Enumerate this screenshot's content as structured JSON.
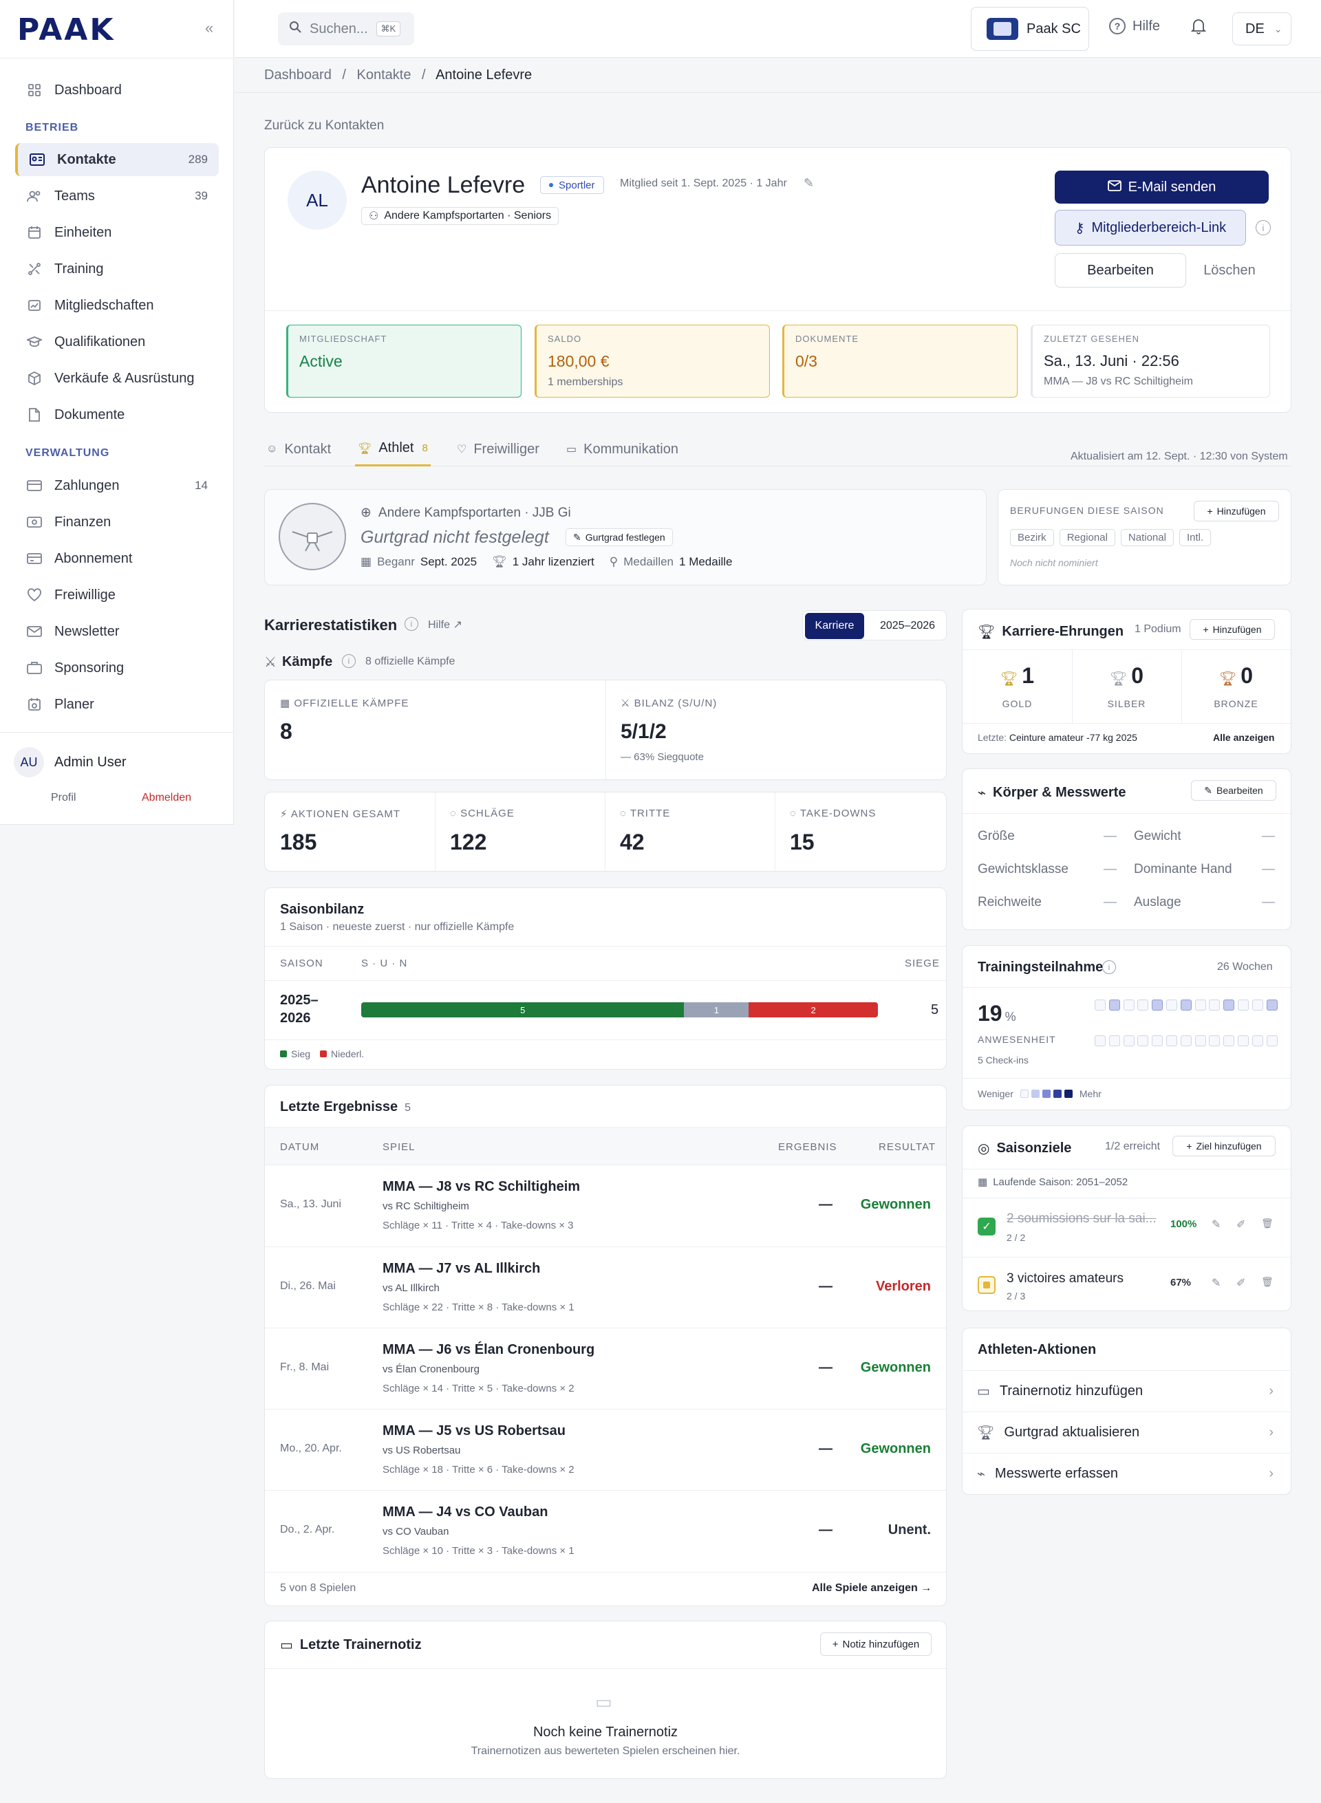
{
  "app": {
    "logo": "PAAK",
    "collapse_icon": "«"
  },
  "sidebar": {
    "items_top": [
      {
        "label": "Dashboard",
        "icon": "grid-icon"
      }
    ],
    "section_betrieb": "BETRIEB",
    "betrieb": [
      {
        "label": "Kontakte",
        "count": "289",
        "icon": "contact-card-icon"
      },
      {
        "label": "Teams",
        "count": "39",
        "icon": "users-icon"
      },
      {
        "label": "Einheiten",
        "count": "",
        "icon": "calendar-icon"
      },
      {
        "label": "Training",
        "count": "",
        "icon": "training-icon"
      },
      {
        "label": "Mitgliedschaften",
        "count": "",
        "icon": "membership-icon"
      },
      {
        "label": "Qualifikationen",
        "count": "",
        "icon": "graduation-icon"
      },
      {
        "label": "Verkäufe & Ausrüstung",
        "count": "",
        "icon": "box-icon"
      },
      {
        "label": "Dokumente",
        "count": "",
        "icon": "document-icon"
      }
    ],
    "section_verwaltung": "VERWALTUNG",
    "verwaltung": [
      {
        "label": "Zahlungen",
        "count": "14",
        "icon": "credit-card-icon"
      },
      {
        "label": "Finanzen",
        "count": "",
        "icon": "finance-icon"
      },
      {
        "label": "Abonnement",
        "count": "",
        "icon": "subscription-icon"
      },
      {
        "label": "Freiwillige",
        "count": "",
        "icon": "heart-icon"
      },
      {
        "label": "Newsletter",
        "count": "",
        "icon": "mail-icon"
      },
      {
        "label": "Sponsoring",
        "count": "",
        "icon": "briefcase-icon"
      },
      {
        "label": "Planer",
        "count": "",
        "icon": "planner-icon"
      }
    ],
    "user": {
      "initials": "AU",
      "name": "Admin User",
      "profile": "Profil",
      "logout": "Abmelden"
    }
  },
  "topbar": {
    "search_placeholder": "Suchen...",
    "shortcut": "⌘K",
    "club": "Paak SC",
    "help": "Hilfe",
    "lang": "DE"
  },
  "breadcrumb": {
    "a": "Dashboard",
    "b": "Kontakte",
    "c": "Antoine Lefevre",
    "sep": "/"
  },
  "back": "Zurück zu Kontakten",
  "profile": {
    "initials": "AL",
    "name": "Antoine Lefevre",
    "badge": "Sportler",
    "member_since": "Mitglied seit 1. Sept. 2025 · 1 Jahr",
    "group": "Andere Kampfsportarten · Seniors",
    "btn_email": "E-Mail senden",
    "btn_link": "Mitgliederbereich-Link",
    "btn_edit": "Bearbeiten",
    "btn_delete": "Löschen"
  },
  "stats": [
    {
      "label": "MITGLIEDSCHAFT",
      "value": "Active",
      "sub": "",
      "bg": "#eaf8f1",
      "border": "#36b37e",
      "color": "#17804a"
    },
    {
      "label": "SALDO",
      "value": "180,00 €",
      "sub": "1 memberships",
      "bg": "#fdf8e8",
      "border": "#e4b73c",
      "color": "#b4610b"
    },
    {
      "label": "DOKUMENTE",
      "value": "0/3",
      "sub": "",
      "bg": "#fdf8e8",
      "border": "#e4b73c",
      "color": "#b4610b"
    },
    {
      "label": "ZULETZT GESEHEN",
      "value": "Sa., 13. Juni · 22:56",
      "sub": "MMA — J8 vs RC Schiltigheim",
      "bg": "#ffffff",
      "border": "#e4e6eb",
      "color": "#1f2430"
    }
  ],
  "tabs": [
    {
      "label": "Kontakt",
      "icon": "person-icon"
    },
    {
      "label": "Athlet",
      "badge": "8",
      "icon": "trophy-icon"
    },
    {
      "label": "Freiwilliger",
      "icon": "heart-icon"
    },
    {
      "label": "Kommunikation",
      "icon": "chat-icon"
    }
  ],
  "updated": "Aktualisiert am 12. Sept. · 12:30 von System",
  "athlete": {
    "discipline": "Andere Kampfsportarten · JJB Gi",
    "grade": "Gurtgrad nicht festgelegt",
    "grade_btn": "Gurtgrad festlegen",
    "begin_label": "Beganr",
    "begin_value": "Sept. 2025",
    "licensed": "1 Jahr lizenziert",
    "medals_label": "Medaillen",
    "medals_value": "1 Medaille"
  },
  "nominations": {
    "title": "BERUFUNGEN DIESE SAISON",
    "add": "Hinzufügen",
    "chips": [
      "Bezirk",
      "Regional",
      "National",
      "Intl."
    ],
    "empty": "Noch nicht nominiert"
  },
  "career": {
    "title": "Karrierestatistiken",
    "help": "Hilfe",
    "toggle_a": "Karriere",
    "toggle_b": "2025–2026",
    "fights_title": "Kämpfe",
    "fights_sub": "8 offizielle Kämpfe",
    "official_label": "OFFIZIELLE KÄMPFE",
    "official_value": "8",
    "record_label": "BILANZ (S/U/N)",
    "record_value": "5/1/2",
    "record_sub": "— 63% Siegquote",
    "metrics": [
      {
        "label": "AKTIONEN GESAMT",
        "value": "185"
      },
      {
        "label": "SCHLÄGE",
        "value": "122"
      },
      {
        "label": "TRITTE",
        "value": "42"
      },
      {
        "label": "TAKE-DOWNS",
        "value": "15"
      }
    ]
  },
  "season": {
    "title": "Saisonbilanz",
    "sub": "1 Saison · neueste zuerst · nur offizielle Kämpfe",
    "col_season": "SAISON",
    "col_sun": "S · U · N",
    "col_wins": "SIEGE",
    "row_season": "2025–\n2026",
    "wins": 5,
    "draws": 1,
    "losses": 2,
    "wins_label": "5",
    "legend_win": "Sieg",
    "legend_loss": "Niederl.",
    "color_win": "#1e7b3a",
    "color_draw": "#9aa3b5",
    "color_loss": "#d32f2f"
  },
  "results": {
    "title": "Letzte Ergebnisse",
    "count": "5",
    "cols": [
      "DATUM",
      "SPIEL",
      "ERGEBNIS",
      "RESULTAT"
    ],
    "rows": [
      {
        "date": "Sa., 13. Juni",
        "match": "MMA — J8 vs RC Schiltigheim",
        "opp": "vs RC Schiltigheim",
        "stats": "Schläge × 11 · Tritte × 4 · Take-downs × 3",
        "score": "—",
        "result": "Gewonnen",
        "type": "win"
      },
      {
        "date": "Di., 26. Mai",
        "match": "MMA — J7 vs AL Illkirch",
        "opp": "vs AL Illkirch",
        "stats": "Schläge × 22 · Tritte × 8 · Take-downs × 1",
        "score": "—",
        "result": "Verloren",
        "type": "loss"
      },
      {
        "date": "Fr., 8. Mai",
        "match": "MMA — J6 vs Élan Cronenbourg",
        "opp": "vs Élan Cronenbourg",
        "stats": "Schläge × 14 · Tritte × 5 · Take-downs × 2",
        "score": "—",
        "result": "Gewonnen",
        "type": "win"
      },
      {
        "date": "Mo., 20. Apr.",
        "match": "MMA — J5 vs US Robertsau",
        "opp": "vs US Robertsau",
        "stats": "Schläge × 18 · Tritte × 6 · Take-downs × 2",
        "score": "—",
        "result": "Gewonnen",
        "type": "win"
      },
      {
        "date": "Do., 2. Apr.",
        "match": "MMA — J4 vs CO Vauban",
        "opp": "vs CO Vauban",
        "stats": "Schläge × 10 · Tritte × 3 · Take-downs × 1",
        "score": "—",
        "result": "Unent.",
        "type": "draw"
      }
    ],
    "footer": "5 von 8 Spielen",
    "all": "Alle Spiele anzeigen"
  },
  "note": {
    "title": "Letzte Trainernotiz",
    "add": "Notiz hinzufügen",
    "empty_title": "Noch keine Trainernotiz",
    "empty_sub": "Trainernotizen aus bewerteten Spielen erscheinen hier."
  },
  "honors": {
    "title": "Karriere-Ehrungen",
    "podium": "1 Podium",
    "add": "Hinzufügen",
    "medals": [
      {
        "count": "1",
        "label": "GOLD",
        "color": "#c9a227"
      },
      {
        "count": "0",
        "label": "SILBER",
        "color": "#9aa0ac"
      },
      {
        "count": "0",
        "label": "BRONZE",
        "color": "#b8733a"
      }
    ],
    "last_label": "Letzte:",
    "last_value": "Ceinture amateur -77 kg 2025",
    "all": "Alle anzeigen"
  },
  "body": {
    "title": "Körper & Messwerte",
    "edit": "Bearbeiten",
    "fields": [
      {
        "label": "Größe",
        "value": "—"
      },
      {
        "label": "Gewicht",
        "value": "—"
      },
      {
        "label": "Gewichtsklasse",
        "value": "—"
      },
      {
        "label": "Dominante Hand",
        "value": "—"
      },
      {
        "label": "Reichweite",
        "value": "—"
      },
      {
        "label": "Auslage",
        "value": "—"
      }
    ]
  },
  "attendance": {
    "title": "Trainingsteilnahme",
    "weeks": "26 Wochen",
    "percent": "19",
    "unit": "%",
    "label": "ANWESENHEIT",
    "checkins": "5 Check-ins",
    "less": "Weniger",
    "more": "Mehr",
    "filled_cells": [
      1,
      4,
      6,
      9,
      12
    ]
  },
  "goals": {
    "title": "Saisonziele",
    "reached": "1/2 erreicht",
    "add": "Ziel hinzufügen",
    "season": "Laufende Saison: 2051–2052",
    "items": [
      {
        "text": "2 soumissions sur la sai...",
        "progress": "2 / 2",
        "pct": "100%",
        "done": true
      },
      {
        "text": "3 victoires amateurs",
        "progress": "2 / 3",
        "pct": "67%",
        "done": false
      }
    ]
  },
  "actions": {
    "title": "Athleten-Aktionen",
    "items": [
      "Trainernotiz hinzufügen",
      "Gurtgrad aktualisieren",
      "Messwerte erfassen"
    ]
  }
}
